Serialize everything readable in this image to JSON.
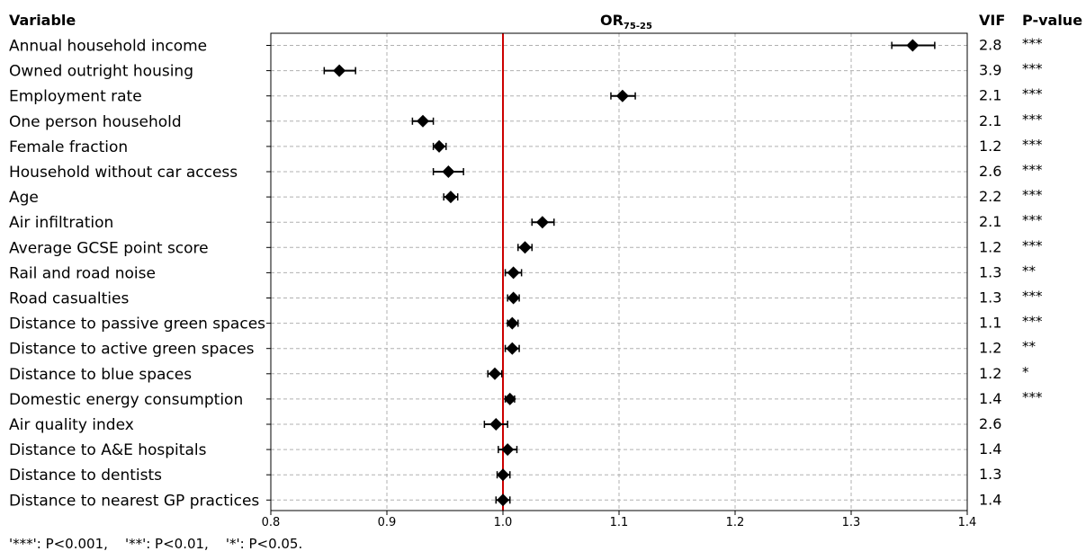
{
  "chart_data": {
    "type": "scatter",
    "subtype": "forest-plot",
    "headers": {
      "variable": "Variable",
      "or_main": "OR",
      "or_sub": "75-25",
      "vif": "VIF",
      "pvalue": "P-value"
    },
    "xlim": [
      0.8,
      1.4
    ],
    "xticks": [
      "0.8",
      "0.9",
      "1.0",
      "1.1",
      "1.2",
      "1.3",
      "1.4"
    ],
    "reference_line": 1.0,
    "grid": true,
    "rows": [
      {
        "label": "Annual household income",
        "or": 1.353,
        "lo": 1.335,
        "hi": 1.372,
        "vif": "2.8",
        "p": "***"
      },
      {
        "label": "Owned outright housing",
        "or": 0.859,
        "lo": 0.846,
        "hi": 0.873,
        "vif": "3.9",
        "p": "***"
      },
      {
        "label": "Employment rate",
        "or": 1.103,
        "lo": 1.093,
        "hi": 1.114,
        "vif": "2.1",
        "p": "***"
      },
      {
        "label": "One person household",
        "or": 0.931,
        "lo": 0.922,
        "hi": 0.94,
        "vif": "2.1",
        "p": "***"
      },
      {
        "label": "Female fraction",
        "or": 0.945,
        "lo": 0.94,
        "hi": 0.951,
        "vif": "1.2",
        "p": "***"
      },
      {
        "label": "Household without car access",
        "or": 0.953,
        "lo": 0.94,
        "hi": 0.966,
        "vif": "2.6",
        "p": "***"
      },
      {
        "label": "Age",
        "or": 0.955,
        "lo": 0.949,
        "hi": 0.961,
        "vif": "2.2",
        "p": "***"
      },
      {
        "label": "Air infiltration",
        "or": 1.034,
        "lo": 1.025,
        "hi": 1.044,
        "vif": "2.1",
        "p": "***"
      },
      {
        "label": "Average GCSE point score",
        "or": 1.019,
        "lo": 1.013,
        "hi": 1.025,
        "vif": "1.2",
        "p": "***"
      },
      {
        "label": "Rail and road noise",
        "or": 1.009,
        "lo": 1.002,
        "hi": 1.016,
        "vif": "1.3",
        "p": "**"
      },
      {
        "label": "Road casualties",
        "or": 1.009,
        "lo": 1.004,
        "hi": 1.014,
        "vif": "1.3",
        "p": "***"
      },
      {
        "label": "Distance to passive green spaces",
        "or": 1.008,
        "lo": 1.004,
        "hi": 1.013,
        "vif": "1.1",
        "p": "***"
      },
      {
        "label": "Distance to active green spaces",
        "or": 1.008,
        "lo": 1.002,
        "hi": 1.014,
        "vif": "1.2",
        "p": "**"
      },
      {
        "label": "Distance to blue spaces",
        "or": 0.993,
        "lo": 0.987,
        "hi": 0.999,
        "vif": "1.2",
        "p": "*"
      },
      {
        "label": "Domestic energy consumption",
        "or": 1.006,
        "lo": 1.002,
        "hi": 1.01,
        "vif": "1.4",
        "p": "***"
      },
      {
        "label": "Air quality index",
        "or": 0.994,
        "lo": 0.984,
        "hi": 1.004,
        "vif": "2.6",
        "p": ""
      },
      {
        "label": "Distance to A&E hospitals",
        "or": 1.004,
        "lo": 0.996,
        "hi": 1.012,
        "vif": "1.4",
        "p": ""
      },
      {
        "label": "Distance to dentists",
        "or": 1.0,
        "lo": 0.995,
        "hi": 1.006,
        "vif": "1.3",
        "p": ""
      },
      {
        "label": "Distance to nearest GP practices",
        "or": 1.0,
        "lo": 0.994,
        "hi": 1.006,
        "vif": "1.4",
        "p": ""
      }
    ],
    "colors": {
      "marker": "#000000",
      "reference_line": "#cc0000",
      "grid": "#b0b0b0",
      "frame": "#000000"
    }
  },
  "footnote": "'***': P<0.001,    '**': P<0.01,    '*': P<0.05."
}
